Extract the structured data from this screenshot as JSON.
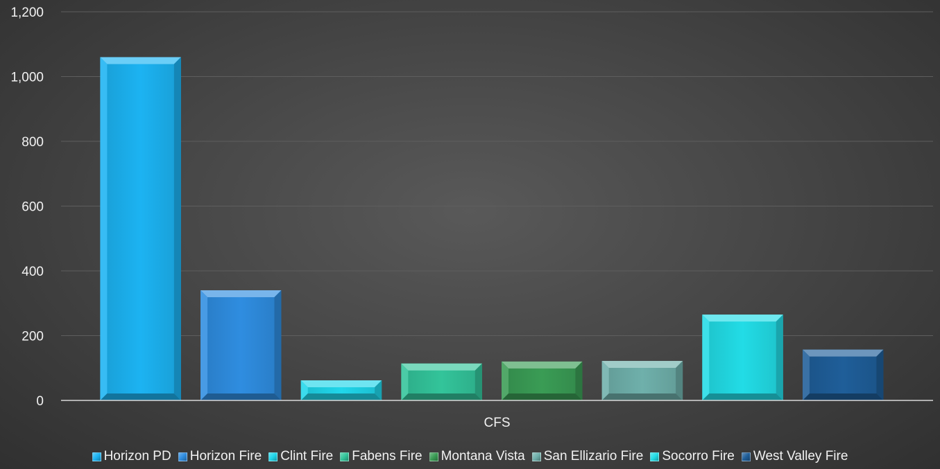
{
  "chart_data": {
    "type": "bar",
    "categories": [
      "CFS"
    ],
    "series": [
      {
        "name": "Horizon PD",
        "values": [
          1060
        ],
        "color": "#1cb3f2"
      },
      {
        "name": "Horizon Fire",
        "values": [
          340
        ],
        "color": "#2f8de0"
      },
      {
        "name": "Clint Fire",
        "values": [
          62
        ],
        "color": "#20d6ea"
      },
      {
        "name": "Fabens Fire",
        "values": [
          114
        ],
        "color": "#33c49a"
      },
      {
        "name": "Montana Vista",
        "values": [
          120
        ],
        "color": "#3a9c55"
      },
      {
        "name": "San Ellizario Fire",
        "values": [
          122
        ],
        "color": "#6fb0ab"
      },
      {
        "name": "Socorro Fire",
        "values": [
          265
        ],
        "color": "#22dce6"
      },
      {
        "name": "West Valley Fire",
        "values": [
          157
        ],
        "color": "#1f5e99"
      }
    ],
    "ylim": [
      0,
      1200
    ],
    "yticks": [
      "0",
      "200",
      "400",
      "600",
      "800",
      "1,000",
      "1,200"
    ],
    "ytick_values": [
      0,
      200,
      400,
      600,
      800,
      1000,
      1200
    ],
    "grid": true,
    "legend_position": "bottom",
    "title": "",
    "xlabel": "",
    "ylabel": ""
  }
}
